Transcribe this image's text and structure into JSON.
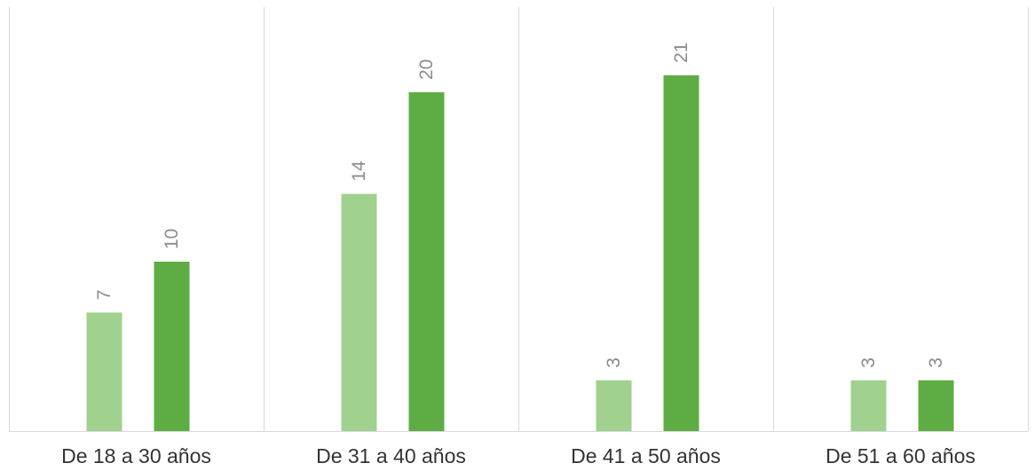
{
  "chart_data": {
    "type": "bar",
    "categories": [
      "De 18 a 30 años",
      "De 31 a 40 años",
      "De 41 a 50 años",
      "De 51 a 60 años"
    ],
    "series": [
      {
        "color": "#a0d18f",
        "values": [
          7,
          14,
          3,
          3
        ]
      },
      {
        "color": "#5ead44",
        "values": [
          10,
          20,
          21,
          3
        ]
      }
    ],
    "ylim": [
      0,
      24
    ],
    "grid": false,
    "legend": false,
    "data_labels": true
  }
}
